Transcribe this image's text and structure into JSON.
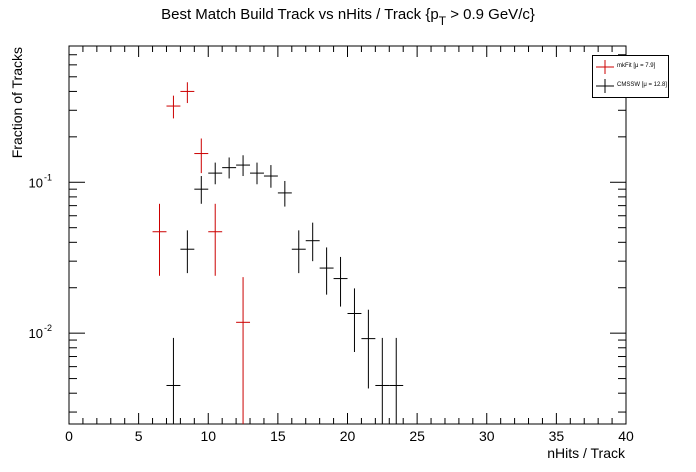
{
  "chart_data": {
    "type": "scatter",
    "title": "Best Match Build Track vs nHits / Track {p",
    "title_sub": "T",
    "title_tail": " > 0.9 GeV/c}",
    "xlabel": "nHits / Track",
    "ylabel": "Fraction of Tracks",
    "xlim": [
      0,
      40
    ],
    "ylim": [
      0.0025,
      0.8
    ],
    "yscale": "log",
    "grid": false,
    "legend_position": "top-right",
    "x_ticks": [
      0,
      5,
      10,
      15,
      20,
      25,
      30,
      35,
      40
    ],
    "x_tick_labels": [
      "0",
      "5",
      "10",
      "15",
      "20",
      "25",
      "30",
      "35",
      "40"
    ],
    "y_ticks": [
      0.1,
      0.01
    ],
    "y_tick_labels": [
      "10^{-1}",
      "10^{-2}"
    ],
    "series": [
      {
        "name": "mkFit",
        "legend_label": "mkFit  [μ =  7.9]",
        "color": "#cc0000",
        "points": [
          {
            "x": 6.5,
            "y": 0.047,
            "ylo": 0.024,
            "yhi": 0.072
          },
          {
            "x": 7.5,
            "y": 0.32,
            "ylo": 0.265,
            "yhi": 0.375
          },
          {
            "x": 8.5,
            "y": 0.4,
            "ylo": 0.335,
            "yhi": 0.46
          },
          {
            "x": 9.5,
            "y": 0.155,
            "ylo": 0.115,
            "yhi": 0.195
          },
          {
            "x": 10.5,
            "y": 0.047,
            "ylo": 0.024,
            "yhi": 0.072
          },
          {
            "x": 12.5,
            "y": 0.0118,
            "ylo": 0.0025,
            "yhi": 0.0235
          }
        ]
      },
      {
        "name": "CMSSW",
        "legend_label": "CMSSW  [μ = 12.8]",
        "color": "#000000",
        "points": [
          {
            "x": 7.5,
            "y": 0.0045,
            "ylo": 0.0025,
            "yhi": 0.0093
          },
          {
            "x": 8.5,
            "y": 0.036,
            "ylo": 0.025,
            "yhi": 0.048
          },
          {
            "x": 9.5,
            "y": 0.09,
            "ylo": 0.072,
            "yhi": 0.11
          },
          {
            "x": 10.5,
            "y": 0.115,
            "ylo": 0.097,
            "yhi": 0.135
          },
          {
            "x": 11.5,
            "y": 0.125,
            "ylo": 0.106,
            "yhi": 0.146
          },
          {
            "x": 12.5,
            "y": 0.13,
            "ylo": 0.11,
            "yhi": 0.151
          },
          {
            "x": 13.5,
            "y": 0.115,
            "ylo": 0.097,
            "yhi": 0.135
          },
          {
            "x": 14.5,
            "y": 0.11,
            "ylo": 0.092,
            "yhi": 0.13
          },
          {
            "x": 15.5,
            "y": 0.085,
            "ylo": 0.069,
            "yhi": 0.102
          },
          {
            "x": 16.5,
            "y": 0.036,
            "ylo": 0.025,
            "yhi": 0.048
          },
          {
            "x": 17.5,
            "y": 0.041,
            "ylo": 0.03,
            "yhi": 0.054
          },
          {
            "x": 18.5,
            "y": 0.027,
            "ylo": 0.018,
            "yhi": 0.037
          },
          {
            "x": 19.5,
            "y": 0.023,
            "ylo": 0.015,
            "yhi": 0.032
          },
          {
            "x": 20.5,
            "y": 0.0135,
            "ylo": 0.0075,
            "yhi": 0.0198
          },
          {
            "x": 21.5,
            "y": 0.0092,
            "ylo": 0.0043,
            "yhi": 0.0143
          },
          {
            "x": 22.5,
            "y": 0.0045,
            "ylo": 0.0025,
            "yhi": 0.0093
          },
          {
            "x": 23.5,
            "y": 0.0045,
            "ylo": 0.0025,
            "yhi": 0.0093
          }
        ]
      }
    ]
  }
}
